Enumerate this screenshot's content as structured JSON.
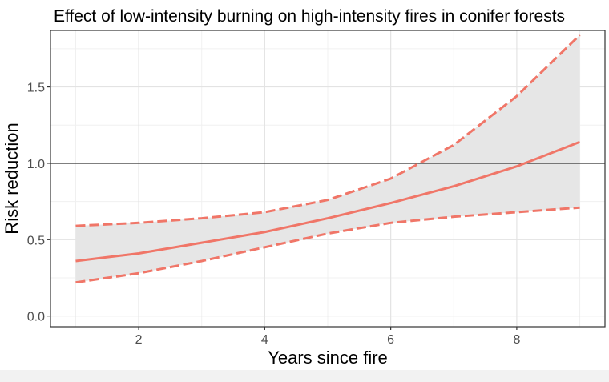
{
  "chart_data": {
    "type": "line",
    "title": "Effect of low-intensity burning on high-intensity fires in conifer forests",
    "xlabel": "Years since fire",
    "ylabel": "Risk reduction",
    "xlim": [
      0.6,
      9.4
    ],
    "ylim": [
      -0.07,
      1.87
    ],
    "x_ticks": [
      2,
      4,
      6,
      8
    ],
    "y_ticks": [
      0.0,
      0.5,
      1.0,
      1.5
    ],
    "y_tick_labels": [
      "0.0",
      "0.5",
      "1.0",
      "1.5"
    ],
    "x_tick_labels": [
      "2",
      "4",
      "6",
      "8"
    ],
    "reference_line": 1.0,
    "grid": true,
    "x": [
      1,
      2,
      3,
      4,
      5,
      6,
      7,
      8,
      9
    ],
    "series": [
      {
        "role": "estimate",
        "values": [
          0.36,
          0.41,
          0.48,
          0.55,
          0.64,
          0.74,
          0.85,
          0.98,
          1.14
        ]
      },
      {
        "role": "upper",
        "values": [
          0.59,
          0.61,
          0.64,
          0.68,
          0.76,
          0.9,
          1.12,
          1.44,
          1.84
        ]
      },
      {
        "role": "lower",
        "values": [
          0.22,
          0.28,
          0.36,
          0.45,
          0.54,
          0.61,
          0.65,
          0.68,
          0.71
        ]
      }
    ],
    "colors": {
      "line": "#f07668",
      "ribbon": "#e6e6e6",
      "reference": "#333333",
      "grid_major": "#e3e3e3",
      "grid_minor": "#f0f0f0"
    }
  }
}
